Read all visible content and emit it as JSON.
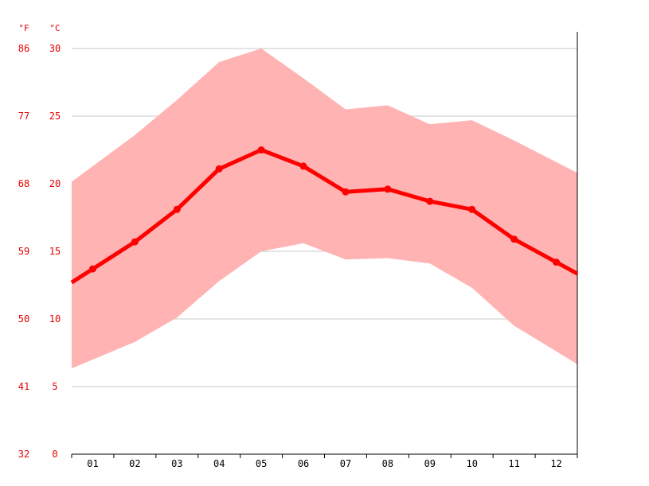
{
  "chart_data": {
    "type": "line",
    "title": "",
    "xlabel": "",
    "ylabel": "",
    "units": {
      "fahrenheit": "°F",
      "celsius": "°C"
    },
    "categories": [
      "01",
      "02",
      "03",
      "04",
      "05",
      "06",
      "07",
      "08",
      "09",
      "10",
      "11",
      "12"
    ],
    "series": [
      {
        "values": [
          13.7,
          15.7,
          18.1,
          21.1,
          22.5,
          21.3,
          19.4,
          19.6,
          18.7,
          18.1,
          15.9,
          14.2
        ]
      }
    ],
    "range": {
      "max": [
        21.3,
        23.6,
        26.2,
        29.0,
        30.0,
        27.8,
        25.5,
        25.8,
        24.4,
        24.7,
        23.2,
        21.6
      ],
      "min": [
        7.0,
        8.3,
        10.1,
        12.8,
        15.0,
        15.6,
        14.4,
        14.5,
        14.1,
        12.3,
        9.5,
        7.6
      ]
    },
    "ylim": [
      0,
      32
    ],
    "y_ticks_celsius": [
      "0",
      "5",
      "10",
      "15",
      "20",
      "25",
      "30"
    ],
    "y_ticks_fahrenheit": [
      "32",
      "41",
      "50",
      "59",
      "68",
      "77",
      "86"
    ],
    "grid": true,
    "colors": {
      "line": "#ff0000",
      "band": "#ffb3b3",
      "axis_text": "#e60000",
      "grid": "#c8c8c8",
      "tick_text": "#000000"
    }
  }
}
